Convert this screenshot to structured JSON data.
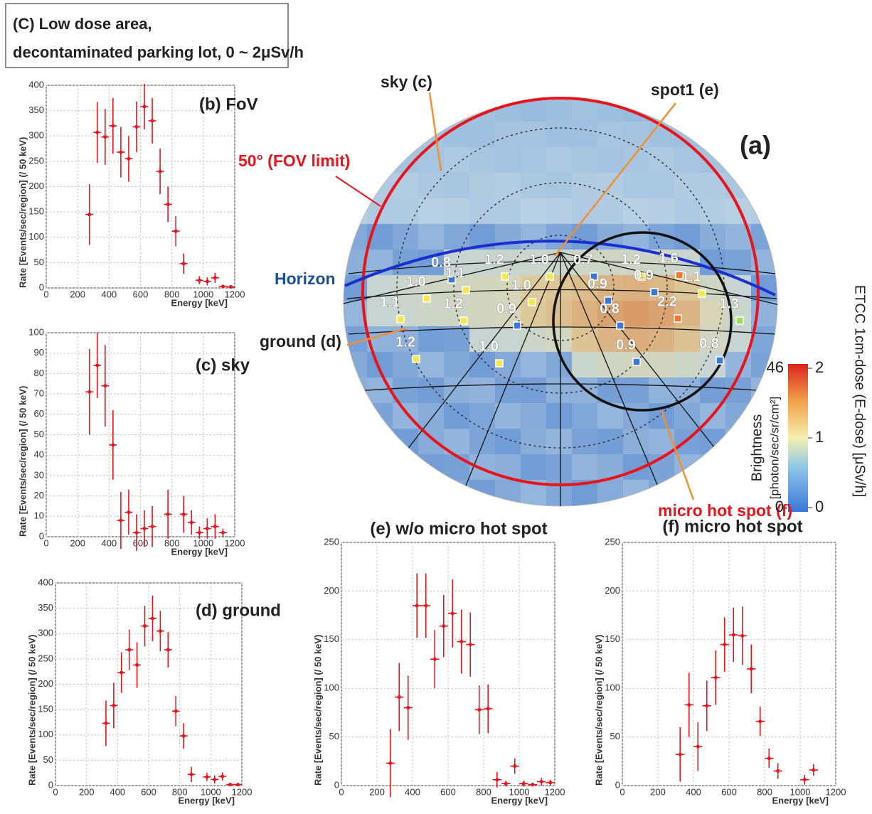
{
  "header": {
    "lines": [
      "(C) Low dose area,",
      "decontaminated parking lot,   0 ~ 2μSv/h"
    ]
  },
  "image_panel": {
    "label": "(a)",
    "annotations": {
      "sky": "sky (c)",
      "spot1": "spot1 (e)",
      "fov": "50°  (FOV limit)",
      "horizon": "Horizon",
      "ground": "ground (d)",
      "hotspot": "micro hot spot (f)"
    },
    "dose_labels": [
      "0.8",
      "1.2",
      "1.0",
      "0.7",
      "1.2",
      "1.6",
      "1.0",
      "1.1",
      "1.0",
      "0.9",
      "0.9",
      "1.1",
      "1.1",
      "1.2",
      "0.9",
      "0.8",
      "2.2",
      "1.3",
      "1.2",
      "1.0",
      "0.9",
      "0.8"
    ],
    "colorbar": {
      "brightness_label": "Brightness",
      "brightness_unit": "[photon/sec/sr/cm²]",
      "brightness_ticks": [
        0,
        46
      ],
      "dose_label": "ETCC 1cm-dose (E-dose) [μSv/h]",
      "dose_ticks": [
        0,
        1,
        2
      ]
    }
  },
  "chart_data": [
    {
      "type": "scatter",
      "title": "(b) FoV",
      "xlabel": "Energy [keV]",
      "ylabel": "Rate [Events/sec/region] (/ 50 keV)",
      "x": [
        275,
        325,
        375,
        425,
        475,
        525,
        575,
        625,
        675,
        725,
        775,
        825,
        875,
        975,
        1025,
        1075,
        1125,
        1175
      ],
      "values": [
        145,
        307,
        298,
        320,
        268,
        255,
        318,
        358,
        330,
        230,
        165,
        112,
        48,
        15,
        13,
        20,
        3,
        2
      ],
      "errors": [
        60,
        60,
        55,
        55,
        50,
        45,
        50,
        45,
        45,
        45,
        35,
        30,
        20,
        8,
        8,
        10,
        3,
        2
      ],
      "color": "#e8141c",
      "xlim": [
        0,
        1200
      ],
      "ylim": [
        0,
        400
      ],
      "xticks": [
        0,
        200,
        400,
        600,
        800,
        1000,
        1200
      ],
      "yticks": [
        0,
        50,
        100,
        150,
        200,
        250,
        300,
        350,
        400
      ],
      "grid": true
    },
    {
      "type": "scatter",
      "title": "(c) sky",
      "xlabel": "Energy [keV]",
      "ylabel": "Rate [Events/sec/region] (/ 50 keV)",
      "x": [
        275,
        325,
        375,
        425,
        475,
        525,
        575,
        625,
        675,
        775,
        875,
        925,
        975,
        1025,
        1075,
        1125
      ],
      "values": [
        71,
        84,
        74,
        45,
        8,
        12,
        2,
        4,
        5,
        11,
        11,
        7,
        2,
        4,
        5,
        2
      ],
      "errors": [
        21,
        16,
        20,
        17,
        14,
        11,
        9,
        9,
        10,
        12,
        9,
        6,
        3,
        5,
        6,
        2
      ],
      "color": "#e8141c",
      "xlim": [
        0,
        1200
      ],
      "ylim": [
        0,
        100
      ],
      "xticks": [
        0,
        200,
        400,
        600,
        800,
        1000,
        1200
      ],
      "yticks": [
        0,
        10,
        20,
        30,
        40,
        50,
        60,
        70,
        80,
        90,
        100
      ],
      "grid": true
    },
    {
      "type": "scatter",
      "title": "(d) ground",
      "xlabel": "Energy [keV]",
      "ylabel": "Rate [Events/sec/region] (/ 50 keV)",
      "x": [
        325,
        375,
        425,
        475,
        525,
        575,
        625,
        675,
        725,
        775,
        825,
        875,
        975,
        1025,
        1075,
        1125,
        1175
      ],
      "values": [
        123,
        158,
        223,
        268,
        238,
        315,
        330,
        305,
        268,
        147,
        98,
        22,
        17,
        12,
        18,
        2,
        2
      ],
      "errors": [
        45,
        45,
        40,
        40,
        45,
        40,
        45,
        40,
        35,
        30,
        25,
        15,
        8,
        8,
        8,
        2,
        2
      ],
      "color": "#e8141c",
      "xlim": [
        0,
        1200
      ],
      "ylim": [
        0,
        400
      ],
      "xticks": [
        0,
        200,
        400,
        600,
        800,
        1000,
        1200
      ],
      "yticks": [
        0,
        50,
        100,
        150,
        200,
        250,
        300,
        350,
        400
      ],
      "grid": true
    },
    {
      "type": "scatter",
      "title": "(e) w/o micro hot spot",
      "xlabel": "Energy [keV]",
      "ylabel": "Rate [Events/sec/region] (/ 50 keV)",
      "x": [
        275,
        325,
        375,
        425,
        475,
        525,
        575,
        625,
        675,
        725,
        775,
        825,
        875,
        925,
        975,
        1025,
        1075,
        1125,
        1175
      ],
      "values": [
        23,
        91,
        80,
        185,
        185,
        130,
        164,
        177,
        148,
        145,
        78,
        79,
        6,
        2,
        20,
        2,
        1,
        4,
        3
      ],
      "errors": [
        35,
        35,
        33,
        33,
        33,
        30,
        32,
        35,
        33,
        33,
        25,
        25,
        8,
        3,
        8,
        3,
        2,
        4,
        3
      ],
      "color": "#e8141c",
      "xlim": [
        0,
        1200
      ],
      "ylim": [
        0,
        250
      ],
      "xticks": [
        0,
        200,
        400,
        600,
        800,
        1000,
        1200
      ],
      "yticks": [
        0,
        50,
        100,
        150,
        200,
        250
      ],
      "grid": true
    },
    {
      "type": "scatter",
      "title": "(f) micro hot spot",
      "xlabel": "Energy [keV]",
      "ylabel": "Rate [Events/sec/region] (/ 50 keV)",
      "x": [
        325,
        375,
        425,
        475,
        525,
        575,
        625,
        675,
        725,
        775,
        825,
        875,
        1025,
        1075
      ],
      "values": [
        32,
        83,
        40,
        82,
        111,
        145,
        155,
        154,
        120,
        66,
        28,
        15,
        6,
        16
      ],
      "errors": [
        28,
        33,
        25,
        26,
        28,
        28,
        28,
        30,
        25,
        15,
        10,
        8,
        5,
        6
      ],
      "color": "#e8141c",
      "xlim": [
        0,
        1200
      ],
      "ylim": [
        0,
        250
      ],
      "xticks": [
        0,
        200,
        400,
        600,
        800,
        1000,
        1200
      ],
      "yticks": [
        0,
        50,
        100,
        150,
        200,
        250
      ],
      "grid": true
    }
  ]
}
